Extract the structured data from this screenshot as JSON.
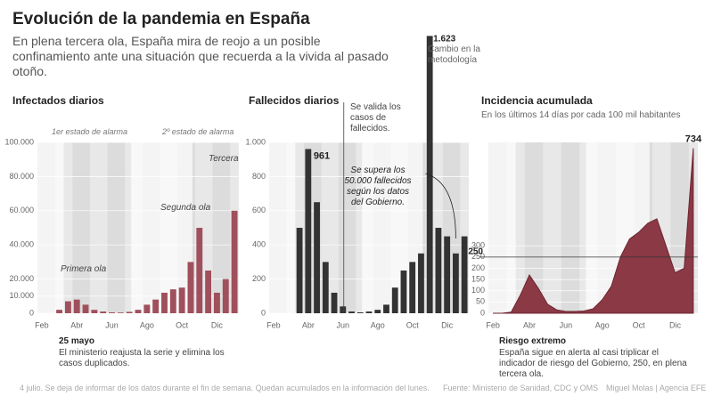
{
  "header": {
    "title": "Evolución de la pandemia en España",
    "subtitle": "En plena tercera ola, España mira de reojo a un posible confinamiento ante una situación que recuerda a la vivida al pasado otoño."
  },
  "chart_data": [
    {
      "type": "bar",
      "title": "Infectados diarios",
      "color": "#a0505c",
      "categories": [
        "Feb",
        null,
        null,
        null,
        "Abr",
        null,
        null,
        null,
        "Jun",
        null,
        null,
        null,
        "Ago",
        null,
        null,
        null,
        "Oct",
        null,
        null,
        null,
        "Dic",
        null,
        null
      ],
      "values": [
        0,
        0,
        2000,
        7000,
        8000,
        5000,
        2000,
        1000,
        500,
        400,
        800,
        2000,
        5000,
        8000,
        12000,
        14000,
        15000,
        30000,
        50000,
        25000,
        12000,
        20000,
        60000
      ],
      "ylim": [
        0,
        100000
      ],
      "yticks": [
        0,
        {
          "value": 10000,
          "label": "10.000"
        },
        {
          "value": 20000,
          "label": "20.000"
        },
        {
          "value": 40000,
          "label": "40.000"
        },
        {
          "value": 60000,
          "label": "60.000"
        },
        {
          "value": 80000,
          "label": "80.000"
        },
        {
          "value": 100000,
          "label": "100.000"
        }
      ],
      "annotations": [
        "1er estado de alarma",
        "2º estado de alarma",
        "Primera ola",
        "Segunda ola",
        "Tercera",
        "25 mayo",
        "El ministerio reajusta la serie y elimina los casos duplicados."
      ]
    },
    {
      "type": "bar",
      "title": "Fallecidos diarios",
      "color": "#333333",
      "categories": [
        "Feb",
        null,
        null,
        null,
        "Abr",
        null,
        null,
        null,
        "Jun",
        null,
        null,
        null,
        "Ago",
        null,
        null,
        null,
        "Oct",
        null,
        null,
        null,
        "Dic",
        null,
        null
      ],
      "values": [
        0,
        0,
        0,
        500,
        961,
        650,
        300,
        120,
        40,
        10,
        5,
        10,
        20,
        50,
        150,
        250,
        300,
        350,
        1623,
        500,
        450,
        350,
        450
      ],
      "value_labels": [
        null,
        null,
        null,
        null,
        null,
        null,
        null,
        null,
        null,
        null,
        null,
        null,
        null,
        null,
        null,
        null,
        null,
        null,
        "1.623",
        null,
        null,
        null,
        null
      ],
      "ylim": [
        0,
        1000
      ],
      "yticks": [
        0,
        200,
        400,
        600,
        800,
        {
          "value": 1000,
          "label": "1.000"
        }
      ],
      "annotations": [
        "Se valida los casos de fallecidos.",
        "Cambio en la metodología",
        "Se supera los 50.000 fallecidos según los datos del Gobierno."
      ]
    },
    {
      "type": "area",
      "title": "Incidencia acumulada",
      "subtitle": "En los últimos 14 días por cada 100 mil habitantes",
      "color": "#8b3a45",
      "categories": [
        "Feb",
        null,
        null,
        null,
        "Abr",
        null,
        null,
        null,
        "Jun",
        null,
        null,
        null,
        "Ago",
        null,
        null,
        null,
        "Oct",
        null,
        null,
        null,
        "Dic",
        null,
        null
      ],
      "values": [
        0,
        0,
        5,
        80,
        170,
        110,
        40,
        15,
        8,
        8,
        10,
        20,
        60,
        120,
        250,
        330,
        360,
        400,
        420,
        300,
        180,
        200,
        734
      ],
      "ylim": [
        0,
        760
      ],
      "yticks": [
        0,
        50,
        100,
        150,
        200,
        250,
        300
      ],
      "hline": 250,
      "annotations": [
        "Riesgo extremo",
        "España sigue en alerta al casi triplicar el indicador de riesgo del Gobierno, 250, en plena tercera ola."
      ]
    }
  ],
  "footer": {
    "note": "4 julio. Se deja de informar de los datos durante el fin de semana. Quedan acumulados en la información del lunes.",
    "source": "Fuente: Ministerio de Sanidad, CDC y OMS",
    "credit": "Miguel Molas | Agencia EFE"
  }
}
